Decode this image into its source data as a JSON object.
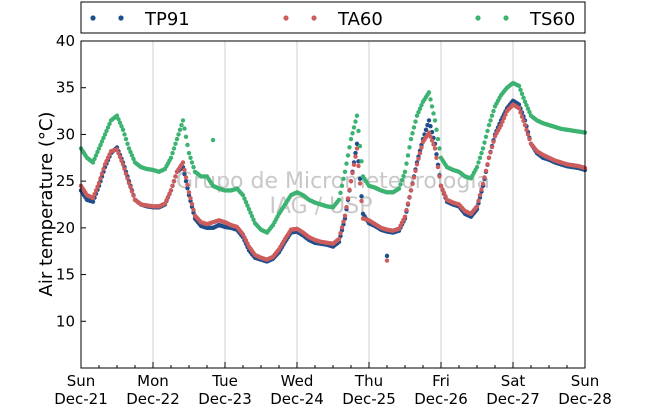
{
  "chart_data": {
    "type": "scatter",
    "ylabel": "Air temperature (°C)",
    "ylim": [
      5,
      40
    ],
    "yticks": [
      10,
      15,
      20,
      25,
      30,
      35,
      40
    ],
    "x_days": [
      "Dec-21",
      "Dec-22",
      "Dec-23",
      "Dec-24",
      "Dec-25",
      "Dec-26",
      "Dec-27",
      "Dec-28"
    ],
    "x_weekdays": [
      "Sun",
      "Mon",
      "Tue",
      "Wed",
      "Thu",
      "Fri",
      "Sat",
      "Sun"
    ],
    "xlim": [
      "Dec-21 00:00",
      "Dec-28 00:00"
    ],
    "grid": "vertical",
    "legend_position": "top",
    "watermark": [
      "Grupo de Micrometeorologia",
      "IAG / USP"
    ],
    "x_hours": [
      0,
      2,
      4,
      6,
      8,
      10,
      12,
      14,
      16,
      18,
      20,
      22,
      24,
      26,
      28,
      30,
      32,
      34,
      36,
      38,
      40,
      42,
      44,
      46,
      48,
      50,
      52,
      54,
      56,
      58,
      60,
      62,
      64,
      66,
      68,
      70,
      72,
      74,
      76,
      78,
      80,
      82,
      84,
      86,
      88,
      90,
      92,
      94,
      96,
      98,
      100,
      102,
      104,
      106,
      108,
      110,
      112,
      114,
      116,
      118,
      120,
      122,
      124,
      126,
      128,
      130,
      132,
      134,
      136,
      138,
      140,
      142,
      144,
      146,
      148,
      150,
      152,
      154,
      156,
      158,
      160,
      162,
      164,
      166,
      168
    ],
    "series": [
      {
        "name": "TP91",
        "color": "#1f4e8c",
        "values": [
          24.0,
          23.0,
          22.8,
          24.5,
          26.5,
          28.0,
          28.6,
          27.0,
          25.0,
          23.0,
          22.5,
          22.3,
          22.2,
          22.2,
          22.5,
          24.0,
          26.0,
          26.5,
          23.5,
          21.0,
          20.2,
          20.0,
          20.0,
          20.3,
          20.1,
          20.0,
          19.8,
          19.0,
          17.6,
          16.8,
          16.6,
          16.4,
          16.7,
          17.4,
          18.5,
          19.5,
          19.6,
          19.2,
          18.7,
          18.4,
          18.3,
          18.2,
          18.0,
          18.5,
          21.0,
          25.0,
          29.0,
          21.5,
          20.5,
          20.2,
          19.8,
          19.6,
          19.5,
          19.7,
          21.0,
          24.0,
          27.0,
          29.5,
          31.5,
          29.0,
          24.5,
          22.8,
          22.5,
          22.3,
          21.5,
          21.2,
          22.0,
          24.5,
          27.5,
          30.0,
          31.5,
          32.8,
          33.6,
          33.2,
          31.5,
          29.0,
          28.0,
          27.5,
          27.3,
          27.0,
          26.8,
          26.6,
          26.5,
          26.4,
          26.2
        ],
        "events": [
          [
            102,
            17.0
          ]
        ]
      },
      {
        "name": "TA60",
        "color": "#cd5c5c",
        "values": [
          24.5,
          23.5,
          23.2,
          24.8,
          26.8,
          28.2,
          28.4,
          26.8,
          24.8,
          23.0,
          22.5,
          22.4,
          22.3,
          22.3,
          22.6,
          24.0,
          26.0,
          27.0,
          23.8,
          21.3,
          20.6,
          20.4,
          20.6,
          20.8,
          20.6,
          20.3,
          20.1,
          19.3,
          18.0,
          17.1,
          16.8,
          16.6,
          16.9,
          17.7,
          18.8,
          19.8,
          19.9,
          19.5,
          19.0,
          18.7,
          18.5,
          18.4,
          18.3,
          18.8,
          21.3,
          25.0,
          28.5,
          21.0,
          20.8,
          20.4,
          20.0,
          19.8,
          19.7,
          19.9,
          21.2,
          24.0,
          26.8,
          29.2,
          30.2,
          28.5,
          24.5,
          23.0,
          22.7,
          22.5,
          21.8,
          21.5,
          22.3,
          24.7,
          27.5,
          29.8,
          31.0,
          32.5,
          33.2,
          32.8,
          31.0,
          29.0,
          28.2,
          27.8,
          27.5,
          27.2,
          27.0,
          26.8,
          26.7,
          26.6,
          26.4
        ],
        "events": [
          [
            102,
            16.5
          ]
        ]
      },
      {
        "name": "TS60",
        "color": "#3cb371",
        "values": [
          28.5,
          27.5,
          27.0,
          28.5,
          30.0,
          31.5,
          32.0,
          30.5,
          28.5,
          27.0,
          26.5,
          26.3,
          26.2,
          26.0,
          26.3,
          27.5,
          29.5,
          31.5,
          28.0,
          26.0,
          25.5,
          25.5,
          24.5,
          24.2,
          24.0,
          24.0,
          24.2,
          23.5,
          22.0,
          20.5,
          19.8,
          19.5,
          20.3,
          21.5,
          22.5,
          23.5,
          23.8,
          23.5,
          23.0,
          22.7,
          22.5,
          22.3,
          22.2,
          23.0,
          26.0,
          29.5,
          32.0,
          25.5,
          24.5,
          24.3,
          24.0,
          23.8,
          23.8,
          24.2,
          26.0,
          29.5,
          32.0,
          33.5,
          34.5,
          31.5,
          27.5,
          26.5,
          26.2,
          26.0,
          25.5,
          25.3,
          26.5,
          28.5,
          31.0,
          33.0,
          34.2,
          35.0,
          35.5,
          35.2,
          33.5,
          32.0,
          31.5,
          31.2,
          31.0,
          30.8,
          30.6,
          30.5,
          30.4,
          30.3,
          30.2
        ],
        "events": [
          [
            44,
            29.4
          ]
        ]
      }
    ]
  }
}
